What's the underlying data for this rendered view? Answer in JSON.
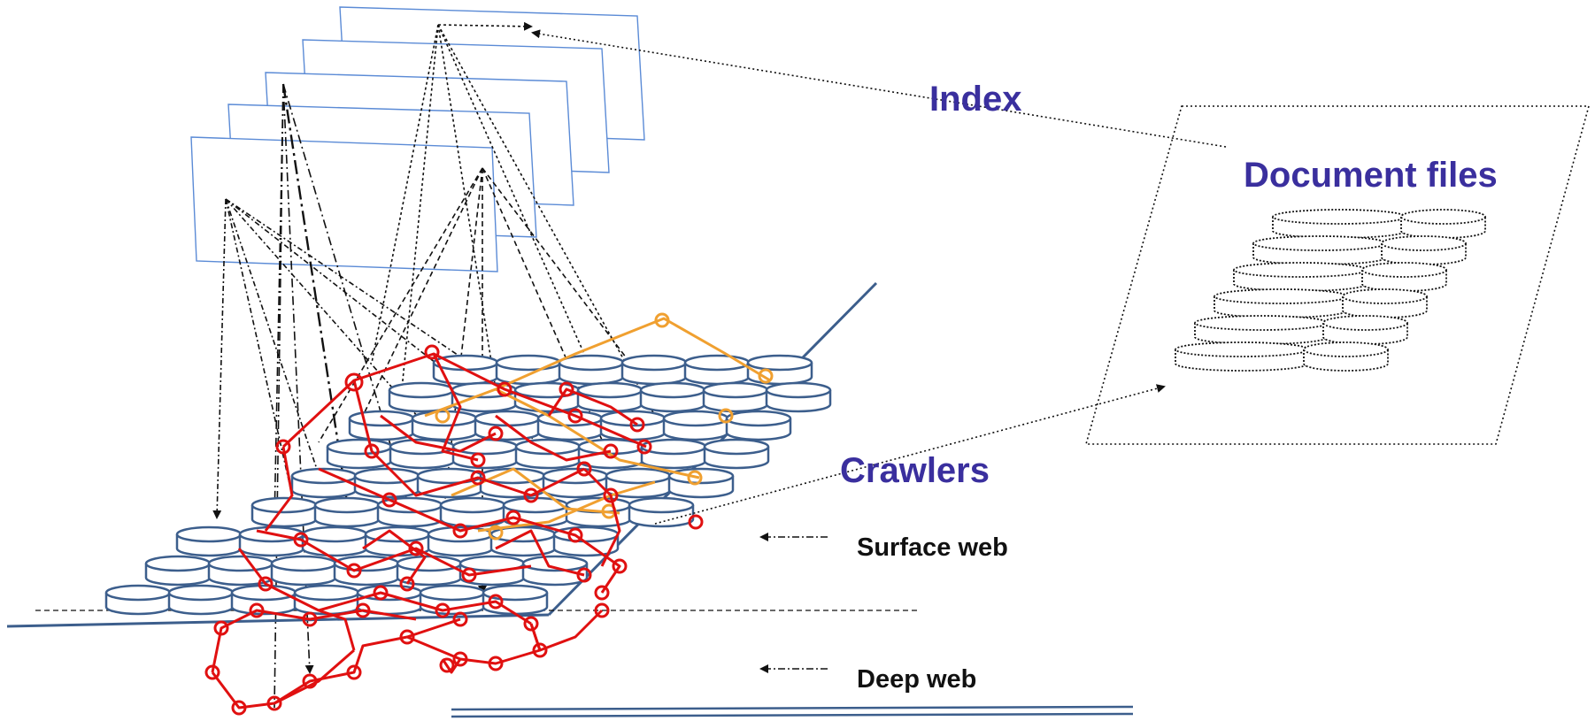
{
  "labels": {
    "index": "Index",
    "document_files": "Document files",
    "crawlers": "Crawlers",
    "surface_web": "Surface web",
    "deep_web": "Deep web"
  },
  "colors": {
    "label_blue": "#3a2f9e",
    "server_blue": "#3c5e8c",
    "index_page": "#5b8bd6",
    "crawler_red": "#e01010",
    "crawler_orange": "#f0a030",
    "line_black": "#111111"
  }
}
